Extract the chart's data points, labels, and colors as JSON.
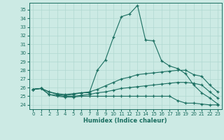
{
  "xlabel": "Humidex (Indice chaleur)",
  "bg_color": "#cceae4",
  "grid_color": "#b0d8d0",
  "line_color": "#1a6e60",
  "xlim": [
    -0.5,
    23.5
  ],
  "ylim": [
    23.5,
    35.8
  ],
  "yticks": [
    24,
    25,
    26,
    27,
    28,
    29,
    30,
    31,
    32,
    33,
    34,
    35
  ],
  "xticks": [
    0,
    1,
    2,
    3,
    4,
    5,
    6,
    7,
    8,
    9,
    10,
    11,
    12,
    13,
    14,
    15,
    16,
    17,
    18,
    19,
    20,
    21,
    22,
    23
  ],
  "series": [
    [
      25.8,
      25.9,
      25.5,
      25.3,
      25.2,
      25.3,
      25.4,
      25.4,
      28.0,
      29.2,
      31.8,
      34.2,
      34.5,
      35.5,
      31.5,
      31.4,
      29.1,
      28.5,
      28.2,
      27.6,
      26.3,
      25.4,
      24.8,
      24.1
    ],
    [
      25.8,
      25.9,
      25.5,
      25.2,
      25.1,
      25.2,
      25.4,
      25.5,
      25.8,
      26.2,
      26.6,
      27.0,
      27.2,
      27.5,
      27.6,
      27.7,
      27.8,
      27.9,
      28.0,
      28.0,
      27.5,
      27.3,
      26.3,
      25.5
    ],
    [
      25.8,
      25.9,
      25.2,
      25.1,
      25.0,
      25.0,
      25.1,
      25.2,
      25.4,
      25.5,
      25.7,
      25.9,
      26.0,
      26.1,
      26.2,
      26.3,
      26.4,
      26.5,
      26.6,
      26.6,
      26.5,
      26.3,
      25.5,
      24.8
    ],
    [
      25.8,
      25.9,
      25.2,
      25.0,
      24.9,
      24.9,
      25.0,
      25.0,
      25.0,
      25.0,
      25.0,
      25.0,
      25.0,
      25.0,
      25.0,
      25.0,
      25.0,
      25.0,
      24.5,
      24.2,
      24.2,
      24.1,
      24.0,
      24.0
    ]
  ]
}
